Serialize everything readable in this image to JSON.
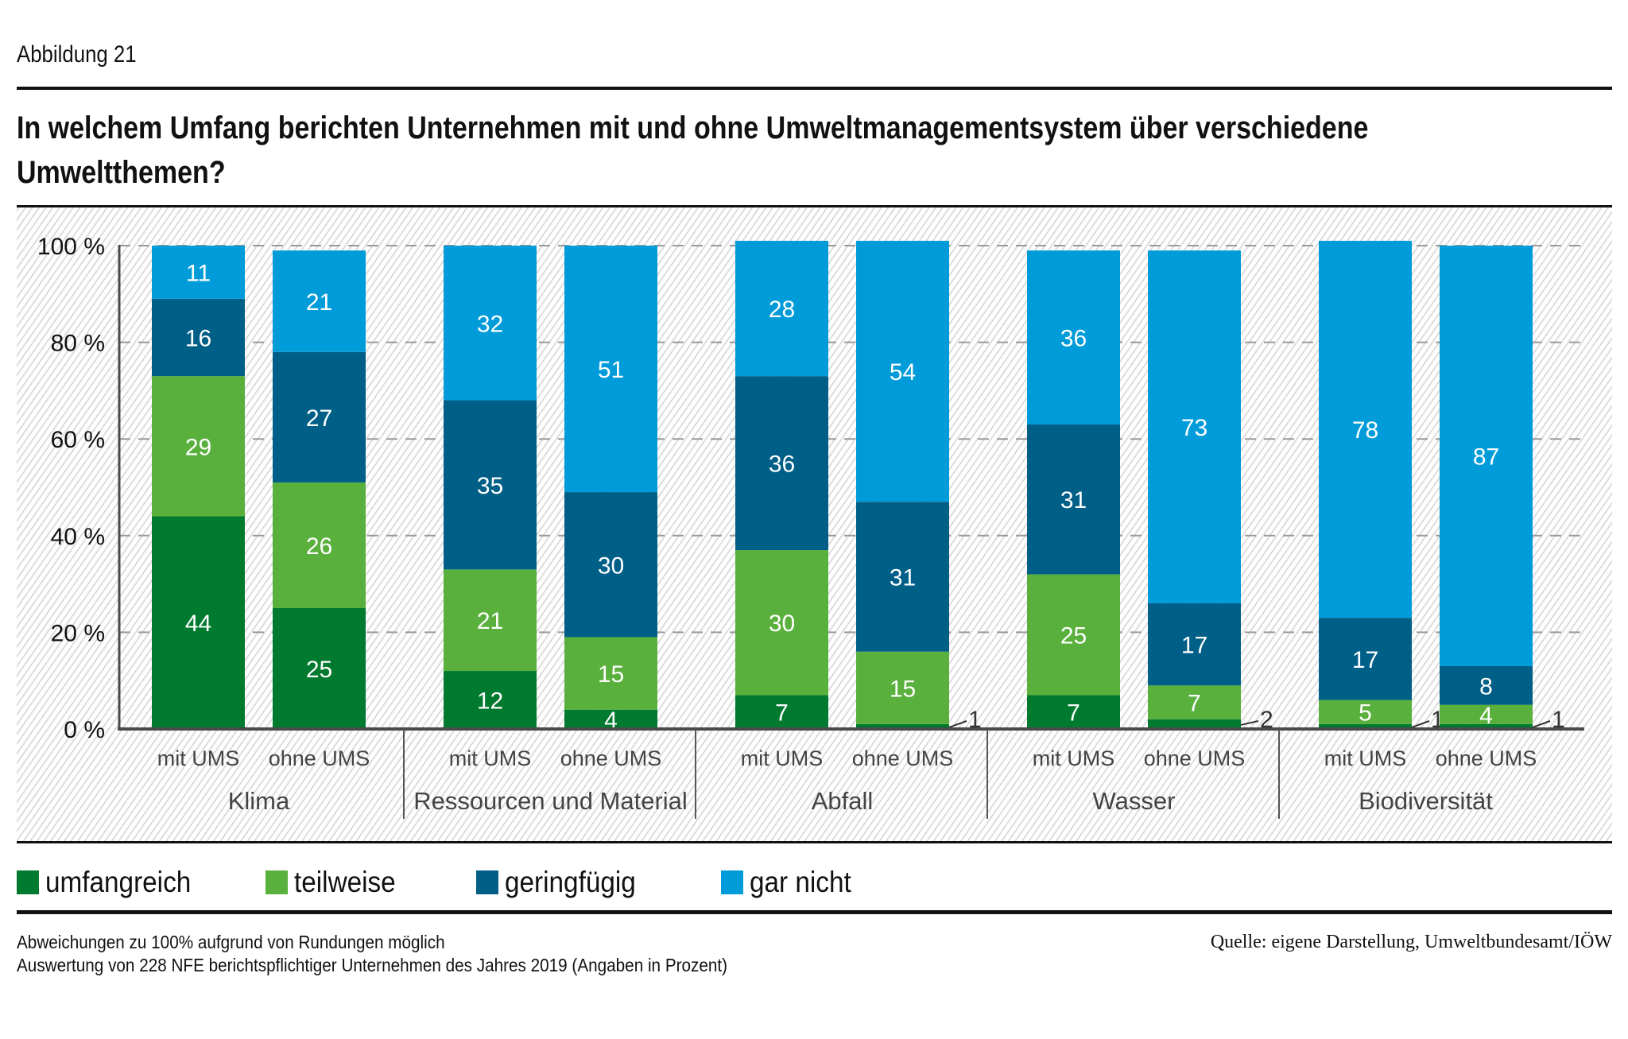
{
  "figure_label": "Abbildung 21",
  "title_line1": "In welchem Umfang berichten Unternehmen mit und ohne Umweltmanagementsystem über verschiedene",
  "title_line2": "Umweltthemen?",
  "footnotes": {
    "note1": "Abweichungen zu 100% aufgrund von Rundungen möglich",
    "note2": "Auswertung von 228 NFE berichtspflichtiger Unternehmen des Jahres 2019 (Angaben in Prozent)",
    "source": "Quelle: eigene Darstellung, Umweltbundesamt/IÖW"
  },
  "chart_data": {
    "type": "bar",
    "stacked": true,
    "title": "In welchem Umfang berichten Unternehmen mit und ohne Umweltmanagementsystem über verschiedene Umweltthemen?",
    "xlabel": "",
    "ylabel": "",
    "ylim": [
      0,
      100
    ],
    "yticks": [
      0,
      20,
      40,
      60,
      80,
      100
    ],
    "ytick_labels": [
      "0 %",
      "20 %",
      "40 %",
      "60 %",
      "80 %",
      "100 %"
    ],
    "grid": "horizontal-dashed",
    "legend_position": "bottom",
    "groups": [
      "Klima",
      "Ressourcen und Material",
      "Abfall",
      "Wasser",
      "Biodiversität"
    ],
    "subcategories": [
      "mit UMS",
      "ohne UMS"
    ],
    "categories": [
      "Klima – mit UMS",
      "Klima – ohne UMS",
      "Ressourcen und Material – mit UMS",
      "Ressourcen und Material – ohne UMS",
      "Abfall – mit UMS",
      "Abfall – ohne UMS",
      "Wasser – mit UMS",
      "Wasser – ohne UMS",
      "Biodiversität – mit UMS",
      "Biodiversität – ohne UMS"
    ],
    "series": [
      {
        "name": "umfangreich",
        "color": "#007a2e",
        "values": [
          44,
          25,
          12,
          4,
          7,
          1,
          7,
          2,
          1,
          1
        ]
      },
      {
        "name": "teilweise",
        "color": "#5ab03c",
        "values": [
          29,
          26,
          21,
          15,
          30,
          15,
          25,
          7,
          5,
          4
        ]
      },
      {
        "name": "geringfügig",
        "color": "#005f87",
        "values": [
          16,
          27,
          35,
          30,
          36,
          31,
          31,
          17,
          17,
          8
        ]
      },
      {
        "name": "gar nicht",
        "color": "#009bd9",
        "values": [
          11,
          21,
          32,
          51,
          28,
          54,
          36,
          73,
          78,
          87
        ]
      }
    ],
    "label_color_inside": "#ffffff",
    "label_color_outside": "#333333",
    "outside_label_threshold": 3
  }
}
